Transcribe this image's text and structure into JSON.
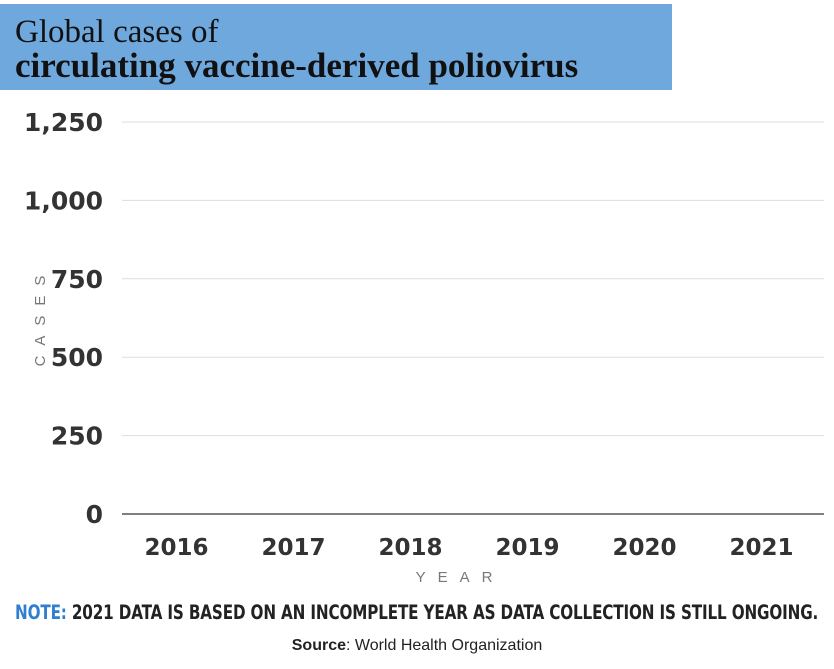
{
  "title": {
    "line1": "Global cases of",
    "line2": "circulating vaccine-derived poliovirus"
  },
  "chart_data": {
    "type": "bar",
    "title": "Global cases of circulating vaccine-derived poliovirus",
    "xlabel": "YEAR",
    "ylabel": "CASES",
    "categories": [
      "2016",
      "2017",
      "2018",
      "2019",
      "2020",
      "2021"
    ],
    "ylim": [
      0,
      1250
    ],
    "yticks": [
      0,
      250,
      500,
      750,
      1000,
      1250
    ],
    "ytick_labels": [
      "0",
      "250",
      "500",
      "750",
      "1,000",
      "1,250"
    ],
    "grid": true,
    "colors": {
      "grid": "#dddddd",
      "baseline": "#555555"
    }
  },
  "note": {
    "prefix": "NOTE:",
    "text": " 2021 DATA IS BASED ON AN INCOMPLETE YEAR AS DATA COLLECTION IS STILL ONGOING."
  },
  "source": {
    "label": "Source",
    "text": ": World Health Organization"
  },
  "colors": {
    "title_bg": "#6fa8dc",
    "note_accent": "#2f7fd1"
  }
}
